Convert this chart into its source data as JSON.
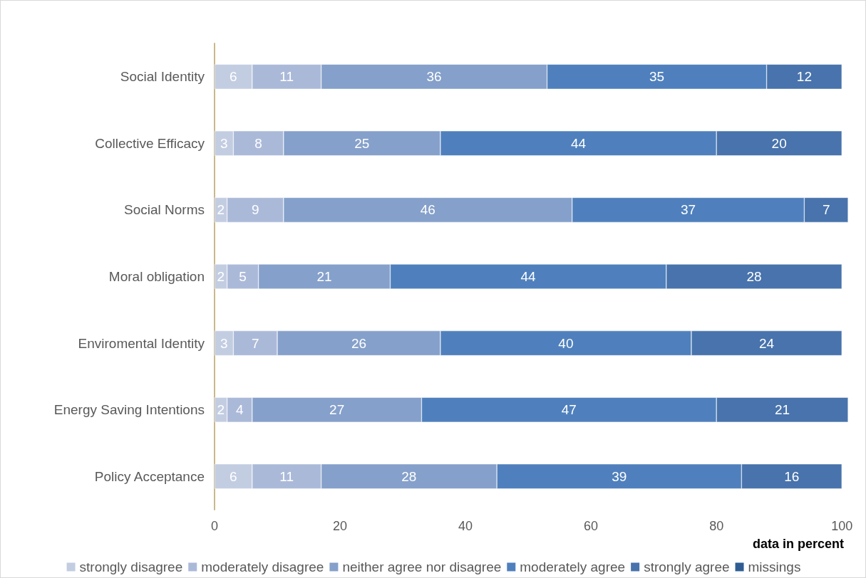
{
  "chart_data": {
    "type": "bar",
    "orientation": "horizontal",
    "stacked": true,
    "data_labels": true,
    "xlabel": "data in percent",
    "categories": [
      "Social Identity",
      "Collective Efficacy",
      "Social Norms",
      "Moral obligation",
      "Enviromental Identity",
      "Energy Saving Intentions",
      "Policy Acceptance"
    ],
    "series": [
      {
        "name": "strongly disagree",
        "color": "#c3cde2",
        "values": [
          6,
          3,
          2,
          2,
          3,
          2,
          6
        ]
      },
      {
        "name": "moderately disagree",
        "color": "#abb9d9",
        "values": [
          11,
          8,
          9,
          5,
          7,
          4,
          11
        ]
      },
      {
        "name": "neither agree nor disagree",
        "color": "#85a0ca",
        "values": [
          36,
          25,
          46,
          21,
          26,
          27,
          28
        ]
      },
      {
        "name": "moderately agree",
        "color": "#4f80bd",
        "values": [
          35,
          44,
          37,
          44,
          40,
          47,
          39
        ]
      },
      {
        "name": "strongly agree",
        "color": "#4873ac",
        "values": [
          12,
          20,
          7,
          28,
          24,
          21,
          16
        ]
      },
      {
        "name": "missings",
        "color": "#2f5d93",
        "values": [
          null,
          null,
          null,
          null,
          null,
          null,
          null
        ]
      }
    ],
    "xlim": [
      0,
      101
    ],
    "xticks": [
      0,
      20,
      40,
      60,
      80,
      100
    ],
    "grid": false,
    "legend": "bottom"
  }
}
